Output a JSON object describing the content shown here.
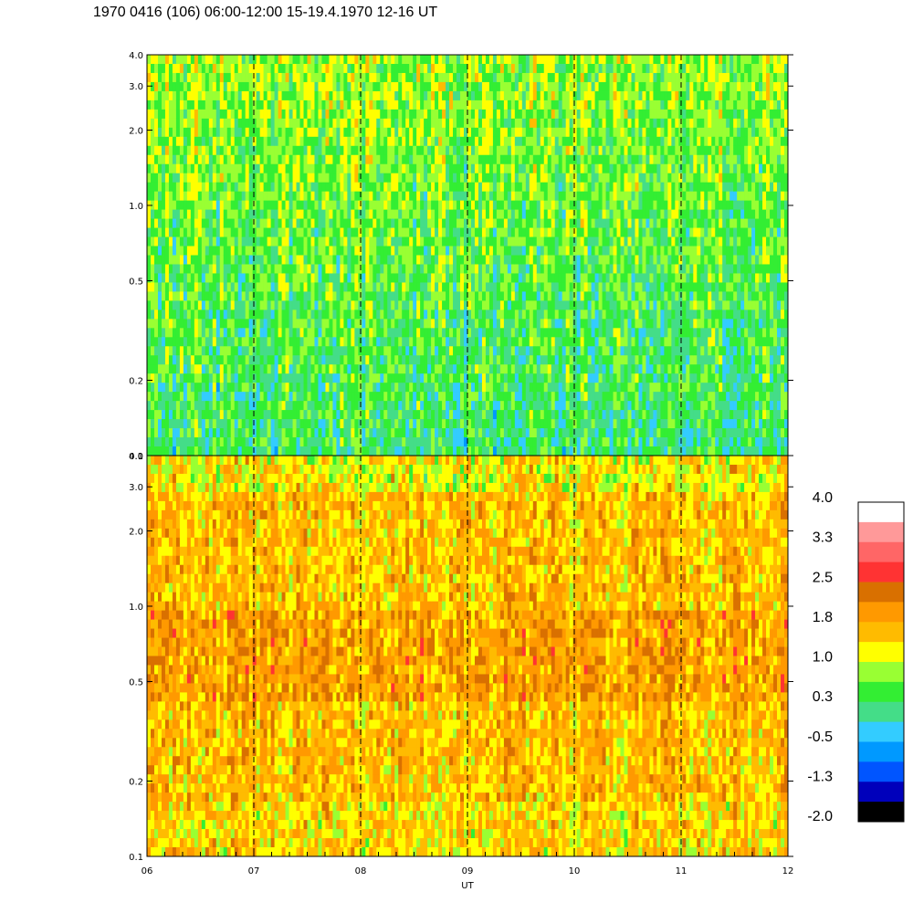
{
  "header": {
    "title": "1970 0416 (106) 06:00-12:00 15-19.4.1970  12-16 UT"
  },
  "chart_data": {
    "type": "heatmap",
    "xlabel": "UT",
    "x_ticks": [
      "06",
      "07",
      "08",
      "09",
      "10",
      "11",
      "12"
    ],
    "x_range": [
      6,
      12
    ],
    "y_scale": "log",
    "panels": [
      {
        "name": "upper",
        "y_range": [
          0.1,
          4.0
        ],
        "y_ticks": [
          {
            "value": 0.1,
            "label": "0.1"
          },
          {
            "value": 0.2,
            "label": "0.2"
          },
          {
            "value": 0.5,
            "label": "0.5"
          },
          {
            "value": 1.0,
            "label": "1.0"
          },
          {
            "value": 2.0,
            "label": "2.0"
          },
          {
            "value": 3.0,
            "label": "3.0"
          },
          {
            "value": 4.0,
            "label": "4.0"
          }
        ],
        "dominant_level": 0.6
      },
      {
        "name": "lower",
        "y_range": [
          0.1,
          4.0
        ],
        "y_ticks": [
          {
            "value": 0.1,
            "label": "0.1"
          },
          {
            "value": 0.2,
            "label": "0.2"
          },
          {
            "value": 0.5,
            "label": "0.5"
          },
          {
            "value": 1.0,
            "label": "1.0"
          },
          {
            "value": 2.0,
            "label": "2.0"
          },
          {
            "value": 3.0,
            "label": "3.0"
          },
          {
            "value": 4.0,
            "label": "4.0"
          }
        ],
        "dominant_level": 1.6
      }
    ],
    "dashed_vertical_lines_at": [
      7,
      8,
      9,
      10,
      11
    ],
    "colorbar": {
      "labels": [
        "4.0",
        "3.3",
        "2.5",
        "1.8",
        "1.0",
        "0.3",
        "-0.5",
        "-1.3",
        "-2.0"
      ],
      "colors_top_to_bottom": [
        "#ffffff",
        "#ff9999",
        "#ff6666",
        "#ff3333",
        "#d97000",
        "#ff9900",
        "#ffbb00",
        "#ffff00",
        "#99ff33",
        "#33ee33",
        "#44dd88",
        "#33ccff",
        "#0099ff",
        "#0055ff",
        "#0000bb",
        "#000000"
      ]
    }
  }
}
